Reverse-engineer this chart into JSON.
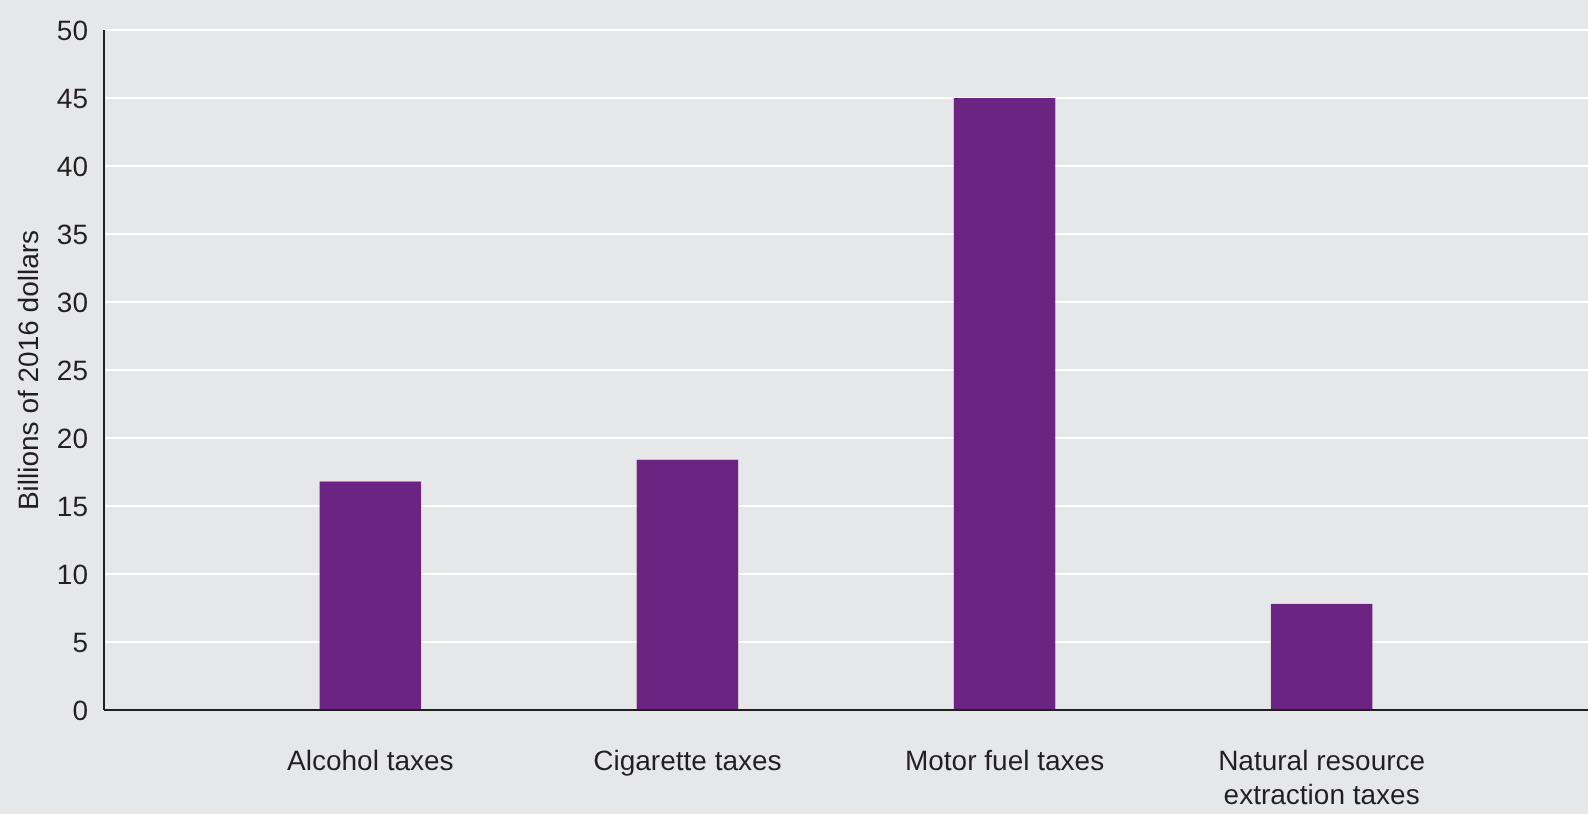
{
  "chart_data": {
    "type": "bar",
    "ylabel": "Billions of 2016 dollars",
    "categories": [
      "Alcohol taxes",
      "Cigarette taxes",
      "Motor fuel taxes",
      "Natural resource extraction taxes"
    ],
    "values": [
      16.8,
      18.4,
      45,
      7.8
    ],
    "color": "#6c2483",
    "ylim": [
      0,
      50
    ],
    "yticks": [
      0,
      5,
      10,
      15,
      20,
      25,
      30,
      35,
      40,
      45,
      50
    ],
    "grid": "y"
  }
}
